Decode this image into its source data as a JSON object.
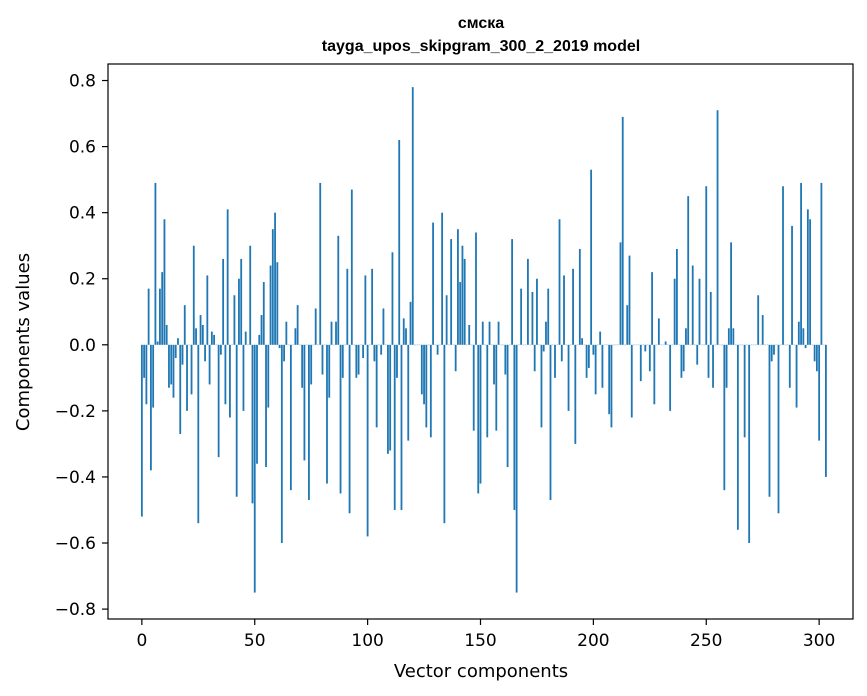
{
  "chart_data": {
    "type": "bar",
    "title": "смска",
    "subtitle": "tayga_upos_skipgram_300_2_2019 model",
    "xlabel": "Vector components",
    "ylabel": "Components values",
    "xlim": [
      -15,
      315
    ],
    "ylim": [
      -0.83,
      0.85
    ],
    "xticks": [
      0,
      50,
      100,
      150,
      200,
      250,
      300
    ],
    "yticks": [
      -0.8,
      -0.6,
      -0.4,
      -0.2,
      0.0,
      0.2,
      0.4,
      0.6,
      0.8
    ],
    "ytick_labels": [
      "−0.8",
      "−0.6",
      "−0.4",
      "−0.2",
      "0.0",
      "0.2",
      "0.4",
      "0.6",
      "0.8"
    ],
    "bar_color": "#1f77b4",
    "grid": false,
    "values": [
      -0.52,
      -0.1,
      -0.18,
      0.17,
      -0.38,
      -0.19,
      0.49,
      0.01,
      0.17,
      0.22,
      0.38,
      0.06,
      -0.13,
      -0.12,
      -0.16,
      -0.04,
      0.02,
      -0.27,
      -0.06,
      0.12,
      -0.2,
      0.0,
      -0.15,
      0.3,
      0.05,
      -0.54,
      0.09,
      0.06,
      -0.05,
      0.21,
      -0.12,
      0.04,
      0.03,
      0.0,
      -0.34,
      -0.03,
      0.26,
      -0.18,
      0.41,
      -0.22,
      0.0,
      0.15,
      -0.46,
      0.2,
      0.26,
      -0.2,
      0.04,
      0.0,
      0.3,
      -0.48,
      -0.75,
      -0.36,
      0.03,
      0.09,
      0.19,
      -0.37,
      -0.19,
      0.24,
      0.35,
      0.4,
      0.25,
      -0.01,
      -0.6,
      -0.05,
      0.07,
      0.0,
      -0.44,
      0.0,
      0.05,
      0.12,
      0.0,
      -0.13,
      -0.35,
      0.0,
      -0.47,
      -0.12,
      0.0,
      0.11,
      0.0,
      0.49,
      -0.09,
      0.0,
      -0.42,
      -0.16,
      0.07,
      0.0,
      0.07,
      0.33,
      -0.45,
      -0.1,
      0.0,
      0.23,
      -0.51,
      0.47,
      0.0,
      -0.1,
      -0.09,
      0.0,
      -0.04,
      0.21,
      -0.58,
      0.0,
      0.23,
      -0.05,
      -0.25,
      0.0,
      -0.03,
      0.11,
      0.0,
      -0.33,
      -0.32,
      0.28,
      -0.5,
      -0.1,
      0.62,
      -0.5,
      0.08,
      0.05,
      -0.29,
      0.13,
      0.78,
      0.0,
      0.0,
      0.0,
      -0.15,
      -0.18,
      -0.25,
      0.0,
      -0.28,
      0.37,
      0.0,
      -0.03,
      0.0,
      0.4,
      -0.54,
      0.15,
      0.0,
      0.32,
      0.0,
      -0.08,
      0.35,
      0.19,
      0.3,
      0.26,
      0.0,
      0.06,
      0.0,
      -0.26,
      0.34,
      -0.45,
      -0.42,
      0.07,
      0.0,
      -0.28,
      0.07,
      0.0,
      -0.12,
      -0.26,
      0.07,
      0.0,
      0.0,
      -0.09,
      -0.37,
      0.0,
      0.32,
      -0.5,
      -0.75,
      0.0,
      0.17,
      0.0,
      0.0,
      0.26,
      0.0,
      0.16,
      -0.08,
      0.2,
      0.0,
      -0.25,
      -0.02,
      0.07,
      0.17,
      -0.47,
      0.0,
      -0.1,
      0.0,
      0.38,
      -0.05,
      0.21,
      0.0,
      -0.2,
      0.0,
      0.23,
      -0.3,
      0.0,
      0.29,
      0.02,
      0.0,
      -0.1,
      -0.07,
      0.53,
      -0.03,
      -0.15,
      0.0,
      0.04,
      -0.13,
      0.0,
      0.0,
      -0.21,
      -0.25,
      0.0,
      0.0,
      0.0,
      0.31,
      0.69,
      0.0,
      0.12,
      0.27,
      -0.22,
      0.0,
      0.0,
      0.0,
      -0.11,
      0.0,
      -0.02,
      0.0,
      -0.08,
      0.22,
      -0.18,
      0.0,
      0.08,
      0.0,
      0.0,
      0.01,
      0.0,
      -0.2,
      0.0,
      0.2,
      0.29,
      0.0,
      -0.1,
      -0.08,
      0.05,
      0.45,
      0.0,
      0.24,
      0.0,
      -0.06,
      0.2,
      0.0,
      0.0,
      0.48,
      -0.1,
      0.16,
      -0.13,
      0.0,
      0.71,
      0.0,
      0.0,
      -0.44,
      -0.13,
      0.05,
      0.31,
      0.05,
      0.0,
      -0.56,
      0.0,
      0.0,
      -0.28,
      0.0,
      -0.6,
      0.0,
      0.0,
      0.0,
      0.15,
      0.0,
      0.09,
      0.0,
      0.0,
      -0.46,
      -0.05,
      -0.03,
      0.0,
      -0.51,
      0.0,
      0.48,
      0.0,
      0.0,
      -0.13,
      0.36,
      0.0,
      -0.19,
      0.07,
      0.49,
      0.05,
      -0.01,
      0.41,
      0.38,
      0.0,
      -0.05,
      -0.08,
      -0.29,
      0.49,
      0.0,
      -0.4
    ]
  }
}
